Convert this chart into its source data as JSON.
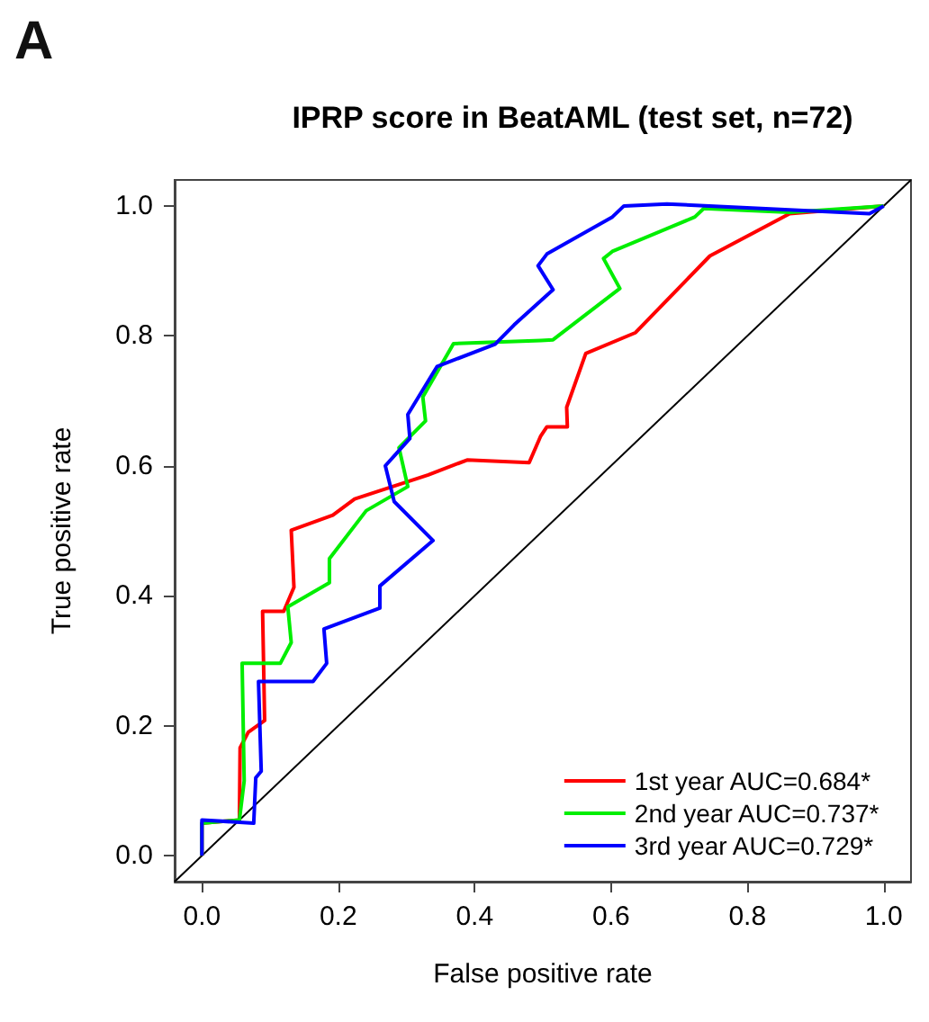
{
  "chart_data": {
    "type": "line",
    "title": "IPRP score in BeatAML (test set, n=72)",
    "xlabel": "False positive rate",
    "ylabel": "True positive rate",
    "annotations": [
      "A"
    ],
    "xlim": [
      -0.04,
      1.04
    ],
    "ylim": [
      -0.04,
      1.04
    ],
    "xticks": [
      {
        "value": 0,
        "label": "0.0"
      },
      {
        "value": 0.2,
        "label": "0.2"
      },
      {
        "value": 0.4,
        "label": "0.4"
      },
      {
        "value": 0.6,
        "label": "0.6"
      },
      {
        "value": 0.8,
        "label": "0.8"
      },
      {
        "value": 1,
        "label": "1.0"
      }
    ],
    "yticks": [
      {
        "value": 0,
        "label": "0.0"
      },
      {
        "value": 0.2,
        "label": "0.2"
      },
      {
        "value": 0.4,
        "label": "0.4"
      },
      {
        "value": 0.6,
        "label": "0.6"
      },
      {
        "value": 0.8,
        "label": "0.8"
      },
      {
        "value": 1,
        "label": "1.0"
      }
    ],
    "grid": false,
    "legend": "bottom right",
    "marker": "none",
    "line_style": "solid",
    "series": [
      {
        "name": "1st year AUC=0.684*",
        "color": "#ff0000",
        "x": [
          0,
          0,
          0.055,
          0.056,
          0.068,
          0.092,
          0.089,
          0.12,
          0.135,
          0.131,
          0.192,
          0.224,
          0.332,
          0.389,
          0.48,
          0.497,
          0.506,
          0.536,
          0.535,
          0.563,
          0.636,
          0.745,
          0.862,
          1
        ],
        "values": [
          0,
          0.05,
          0.055,
          0.166,
          0.19,
          0.208,
          0.376,
          0.376,
          0.413,
          0.501,
          0.524,
          0.549,
          0.586,
          0.609,
          0.605,
          0.646,
          0.66,
          0.66,
          0.69,
          0.773,
          0.805,
          0.923,
          0.988,
          1
        ]
      },
      {
        "name": "2nd year AUC=0.737*",
        "color": "#00ee00",
        "x": [
          0,
          0,
          0.055,
          0.062,
          0.059,
          0.115,
          0.131,
          0.126,
          0.187,
          0.187,
          0.241,
          0.302,
          0.289,
          0.328,
          0.324,
          0.369,
          0.497,
          0.515,
          0.613,
          0.589,
          0.602,
          0.723,
          0.736,
          0.862,
          1
        ],
        "values": [
          0,
          0.05,
          0.055,
          0.115,
          0.296,
          0.296,
          0.328,
          0.383,
          0.42,
          0.457,
          0.531,
          0.568,
          0.628,
          0.669,
          0.706,
          0.788,
          0.793,
          0.794,
          0.873,
          0.919,
          0.93,
          0.983,
          0.996,
          0.99,
          1
        ]
      },
      {
        "name": "3rd year AUC=0.729*",
        "color": "#0000ff",
        "x": [
          0,
          0,
          0.076,
          0.079,
          0.087,
          0.083,
          0.163,
          0.183,
          0.179,
          0.261,
          0.261,
          0.339,
          0.282,
          0.269,
          0.305,
          0.302,
          0.345,
          0.43,
          0.458,
          0.515,
          0.493,
          0.506,
          0.602,
          0.619,
          0.682,
          0.979,
          1
        ],
        "values": [
          0,
          0.055,
          0.05,
          0.12,
          0.13,
          0.268,
          0.268,
          0.296,
          0.349,
          0.381,
          0.415,
          0.485,
          0.545,
          0.6,
          0.642,
          0.679,
          0.753,
          0.787,
          0.817,
          0.871,
          0.908,
          0.926,
          0.983,
          1,
          1.003,
          0.988,
          1
        ]
      },
      {
        "type": "line",
        "color": "#000000",
        "x": [
          -0.04,
          1.04
        ],
        "values": [
          -0.04,
          1.04
        ]
      }
    ]
  }
}
